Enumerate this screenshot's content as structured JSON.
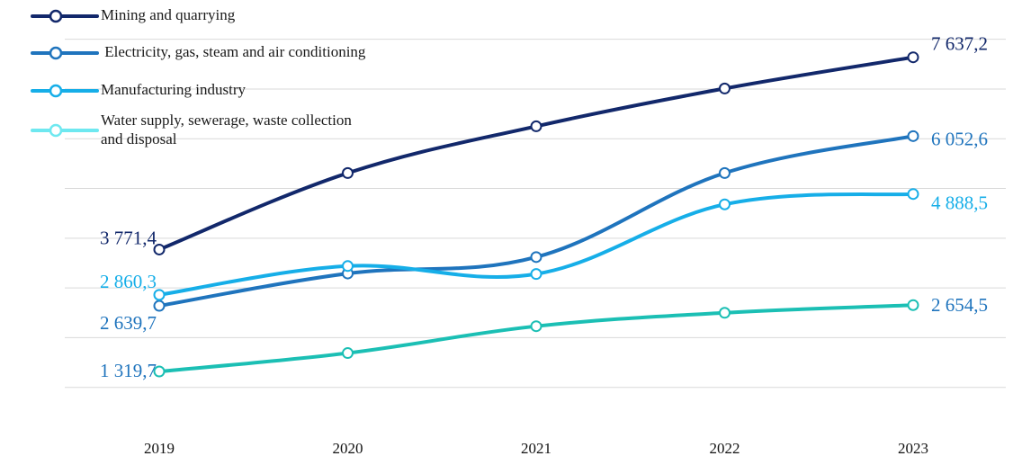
{
  "chart_data": {
    "type": "line",
    "categories": [
      "2019",
      "2020",
      "2021",
      "2022",
      "2023"
    ],
    "ylim": [
      0,
      8500
    ],
    "grid": true,
    "legend_position": "top-left",
    "series": [
      {
        "name": "Mining and quarrying",
        "color": "#12286b",
        "values": [
          3771.4,
          5310,
          6250,
          7010,
          7637.2
        ],
        "labels": [
          "3 771,4",
          "",
          "",
          "",
          "7 637,2"
        ]
      },
      {
        "name": " Electricity, gas, steam and air conditioning",
        "color": "#1f74bd",
        "values": [
          2639.7,
          3290,
          3620,
          5310,
          6052.6
        ],
        "labels": [
          "2 639,7",
          "",
          "",
          "",
          "6 052,6"
        ]
      },
      {
        "name": "Manufacturing industry",
        "color": "#16aee8",
        "values": [
          2860.3,
          3440,
          3280,
          4680,
          4888.5
        ],
        "labels": [
          "2 860,3",
          "",
          "",
          "",
          "4 888,5"
        ]
      },
      {
        "name": "Water supply, sewerage, waste collection and disposal",
        "color": "#1bbfb4",
        "legend_color": "#6ee8f0",
        "values": [
          1319.7,
          1690,
          2230,
          2500,
          2654.5
        ],
        "labels": [
          "1 319,7",
          "",
          "",
          "",
          "2 654,5"
        ]
      }
    ]
  }
}
